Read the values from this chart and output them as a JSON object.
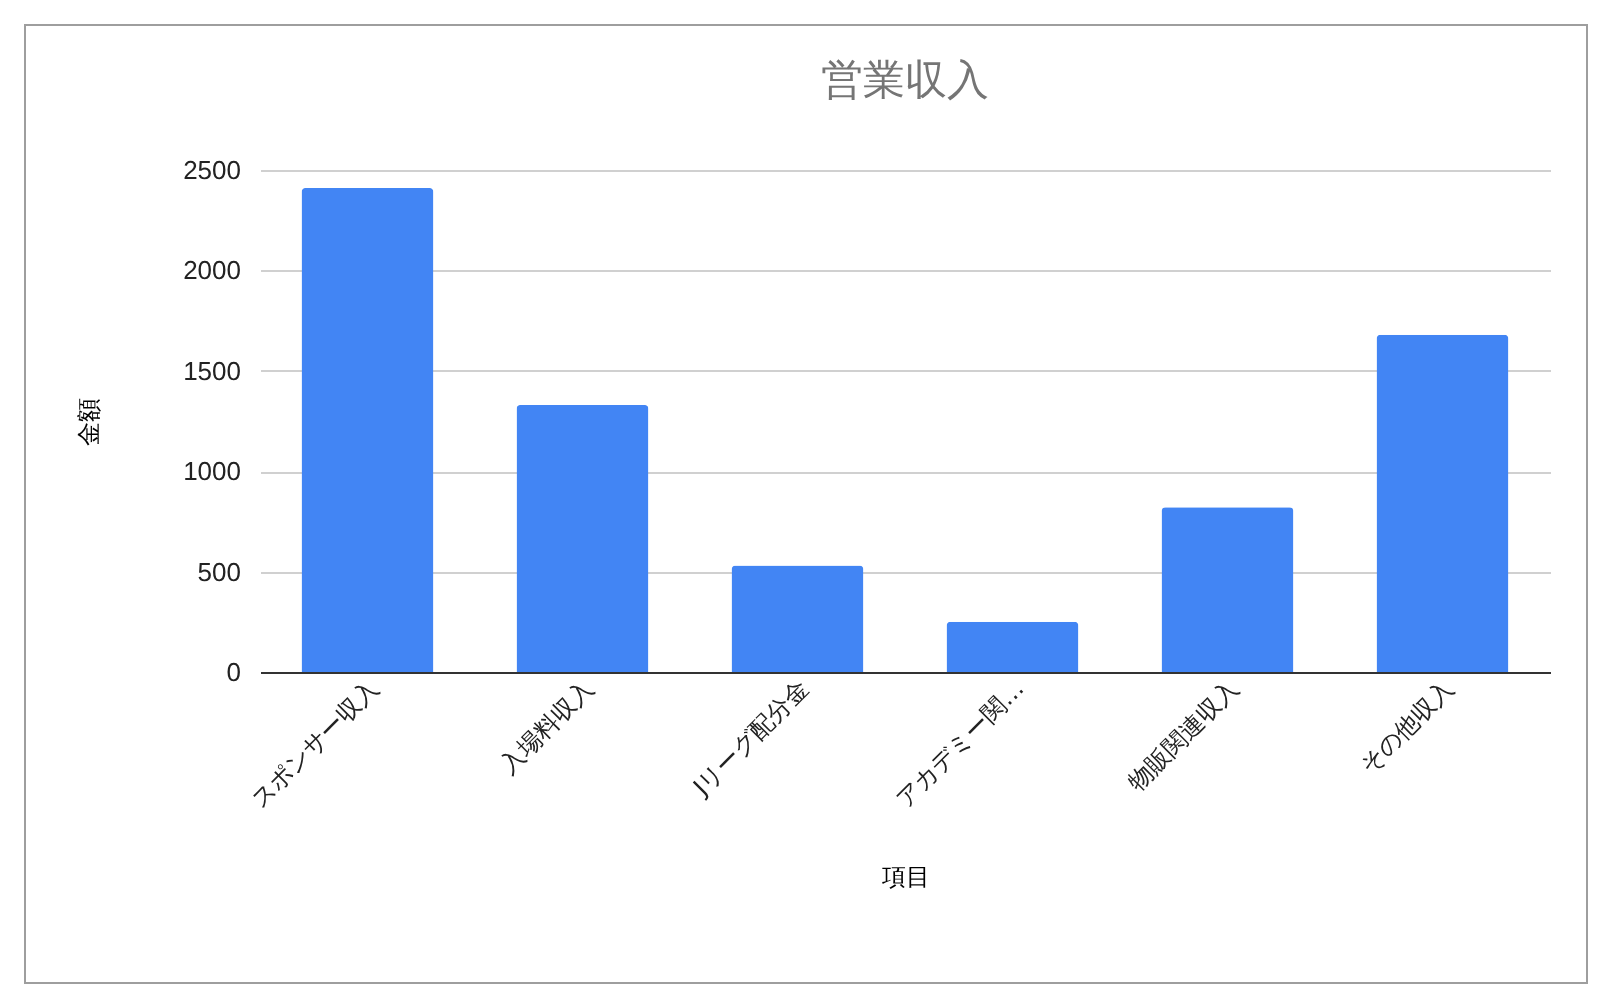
{
  "chart_data": {
    "type": "bar",
    "title": "営業収入",
    "xlabel": "項目",
    "ylabel": "金額",
    "categories": [
      "スポンサー収入",
      "入場料収入",
      "Jリーグ配分金",
      "アカデミー関…",
      "物販関連収入",
      "その他収入"
    ],
    "values": [
      2410,
      1330,
      530,
      250,
      820,
      1680
    ],
    "color": "#4285f4",
    "ylim": [
      0,
      2500
    ],
    "yticks": [
      0,
      500,
      1000,
      1500,
      2000,
      2500
    ],
    "grid": "y"
  }
}
